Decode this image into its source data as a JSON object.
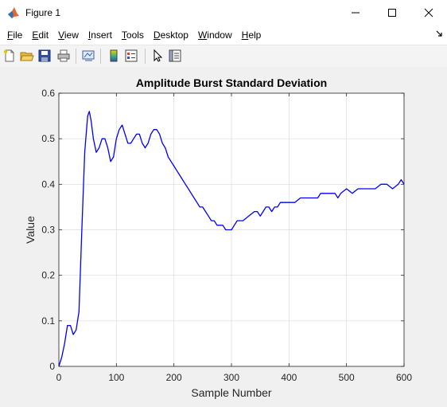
{
  "window": {
    "title": "Figure 1"
  },
  "menu": [
    {
      "u": "F",
      "rest": "ile"
    },
    {
      "u": "E",
      "rest": "dit"
    },
    {
      "u": "V",
      "rest": "iew"
    },
    {
      "u": "I",
      "rest": "nsert"
    },
    {
      "u": "T",
      "rest": "ools"
    },
    {
      "u": "D",
      "rest": "esktop"
    },
    {
      "u": "W",
      "rest": "indow"
    },
    {
      "u": "H",
      "rest": "elp"
    }
  ],
  "toolbar": [
    "new-figure",
    "open-file",
    "save",
    "print",
    "link-plot",
    "insert-colorbar",
    "insert-legend",
    "select-pointer",
    "property-inspector"
  ],
  "colors": {
    "line": "#0000ff",
    "axes_bg": "#ffffff",
    "grid": "#dcdcdc"
  },
  "chart_data": {
    "type": "line",
    "title": "Amplitude Burst Standard Deviation",
    "xlabel": "Sample Number",
    "ylabel": "Value",
    "xlim": [
      0,
      600
    ],
    "ylim": [
      0,
      0.6
    ],
    "xticks": [
      0,
      100,
      200,
      300,
      400,
      500,
      600
    ],
    "yticks": [
      0,
      0.1,
      0.2,
      0.3,
      0.4,
      0.5,
      0.6
    ],
    "grid": true,
    "series": [
      {
        "x": [
          0,
          5,
          10,
          15,
          20,
          25,
          30,
          35,
          40,
          45,
          50,
          53,
          56,
          60,
          65,
          70,
          75,
          80,
          85,
          90,
          95,
          100,
          105,
          110,
          115,
          120,
          125,
          130,
          135,
          140,
          145,
          150,
          155,
          160,
          165,
          170,
          175,
          180,
          185,
          190,
          195,
          200,
          205,
          210,
          215,
          220,
          225,
          230,
          235,
          240,
          245,
          250,
          255,
          260,
          265,
          270,
          275,
          280,
          285,
          290,
          295,
          300,
          305,
          310,
          320,
          330,
          340,
          345,
          350,
          355,
          360,
          365,
          370,
          375,
          380,
          385,
          390,
          400,
          410,
          420,
          430,
          440,
          450,
          455,
          460,
          470,
          480,
          485,
          490,
          500,
          510,
          520,
          530,
          540,
          550,
          560,
          570,
          580,
          590,
          595,
          600
        ],
        "y": [
          0,
          0.02,
          0.05,
          0.09,
          0.09,
          0.07,
          0.08,
          0.12,
          0.3,
          0.47,
          0.55,
          0.56,
          0.54,
          0.5,
          0.47,
          0.48,
          0.5,
          0.5,
          0.48,
          0.45,
          0.46,
          0.5,
          0.52,
          0.53,
          0.51,
          0.49,
          0.49,
          0.5,
          0.51,
          0.51,
          0.49,
          0.48,
          0.49,
          0.51,
          0.52,
          0.52,
          0.51,
          0.49,
          0.48,
          0.46,
          0.45,
          0.44,
          0.43,
          0.42,
          0.41,
          0.4,
          0.39,
          0.38,
          0.37,
          0.36,
          0.35,
          0.35,
          0.34,
          0.33,
          0.32,
          0.32,
          0.31,
          0.31,
          0.31,
          0.3,
          0.3,
          0.3,
          0.31,
          0.32,
          0.32,
          0.33,
          0.34,
          0.34,
          0.33,
          0.34,
          0.35,
          0.35,
          0.34,
          0.35,
          0.35,
          0.36,
          0.36,
          0.36,
          0.36,
          0.37,
          0.37,
          0.37,
          0.37,
          0.38,
          0.38,
          0.38,
          0.38,
          0.37,
          0.38,
          0.39,
          0.38,
          0.39,
          0.39,
          0.39,
          0.39,
          0.4,
          0.4,
          0.39,
          0.4,
          0.41,
          0.4
        ]
      }
    ]
  }
}
